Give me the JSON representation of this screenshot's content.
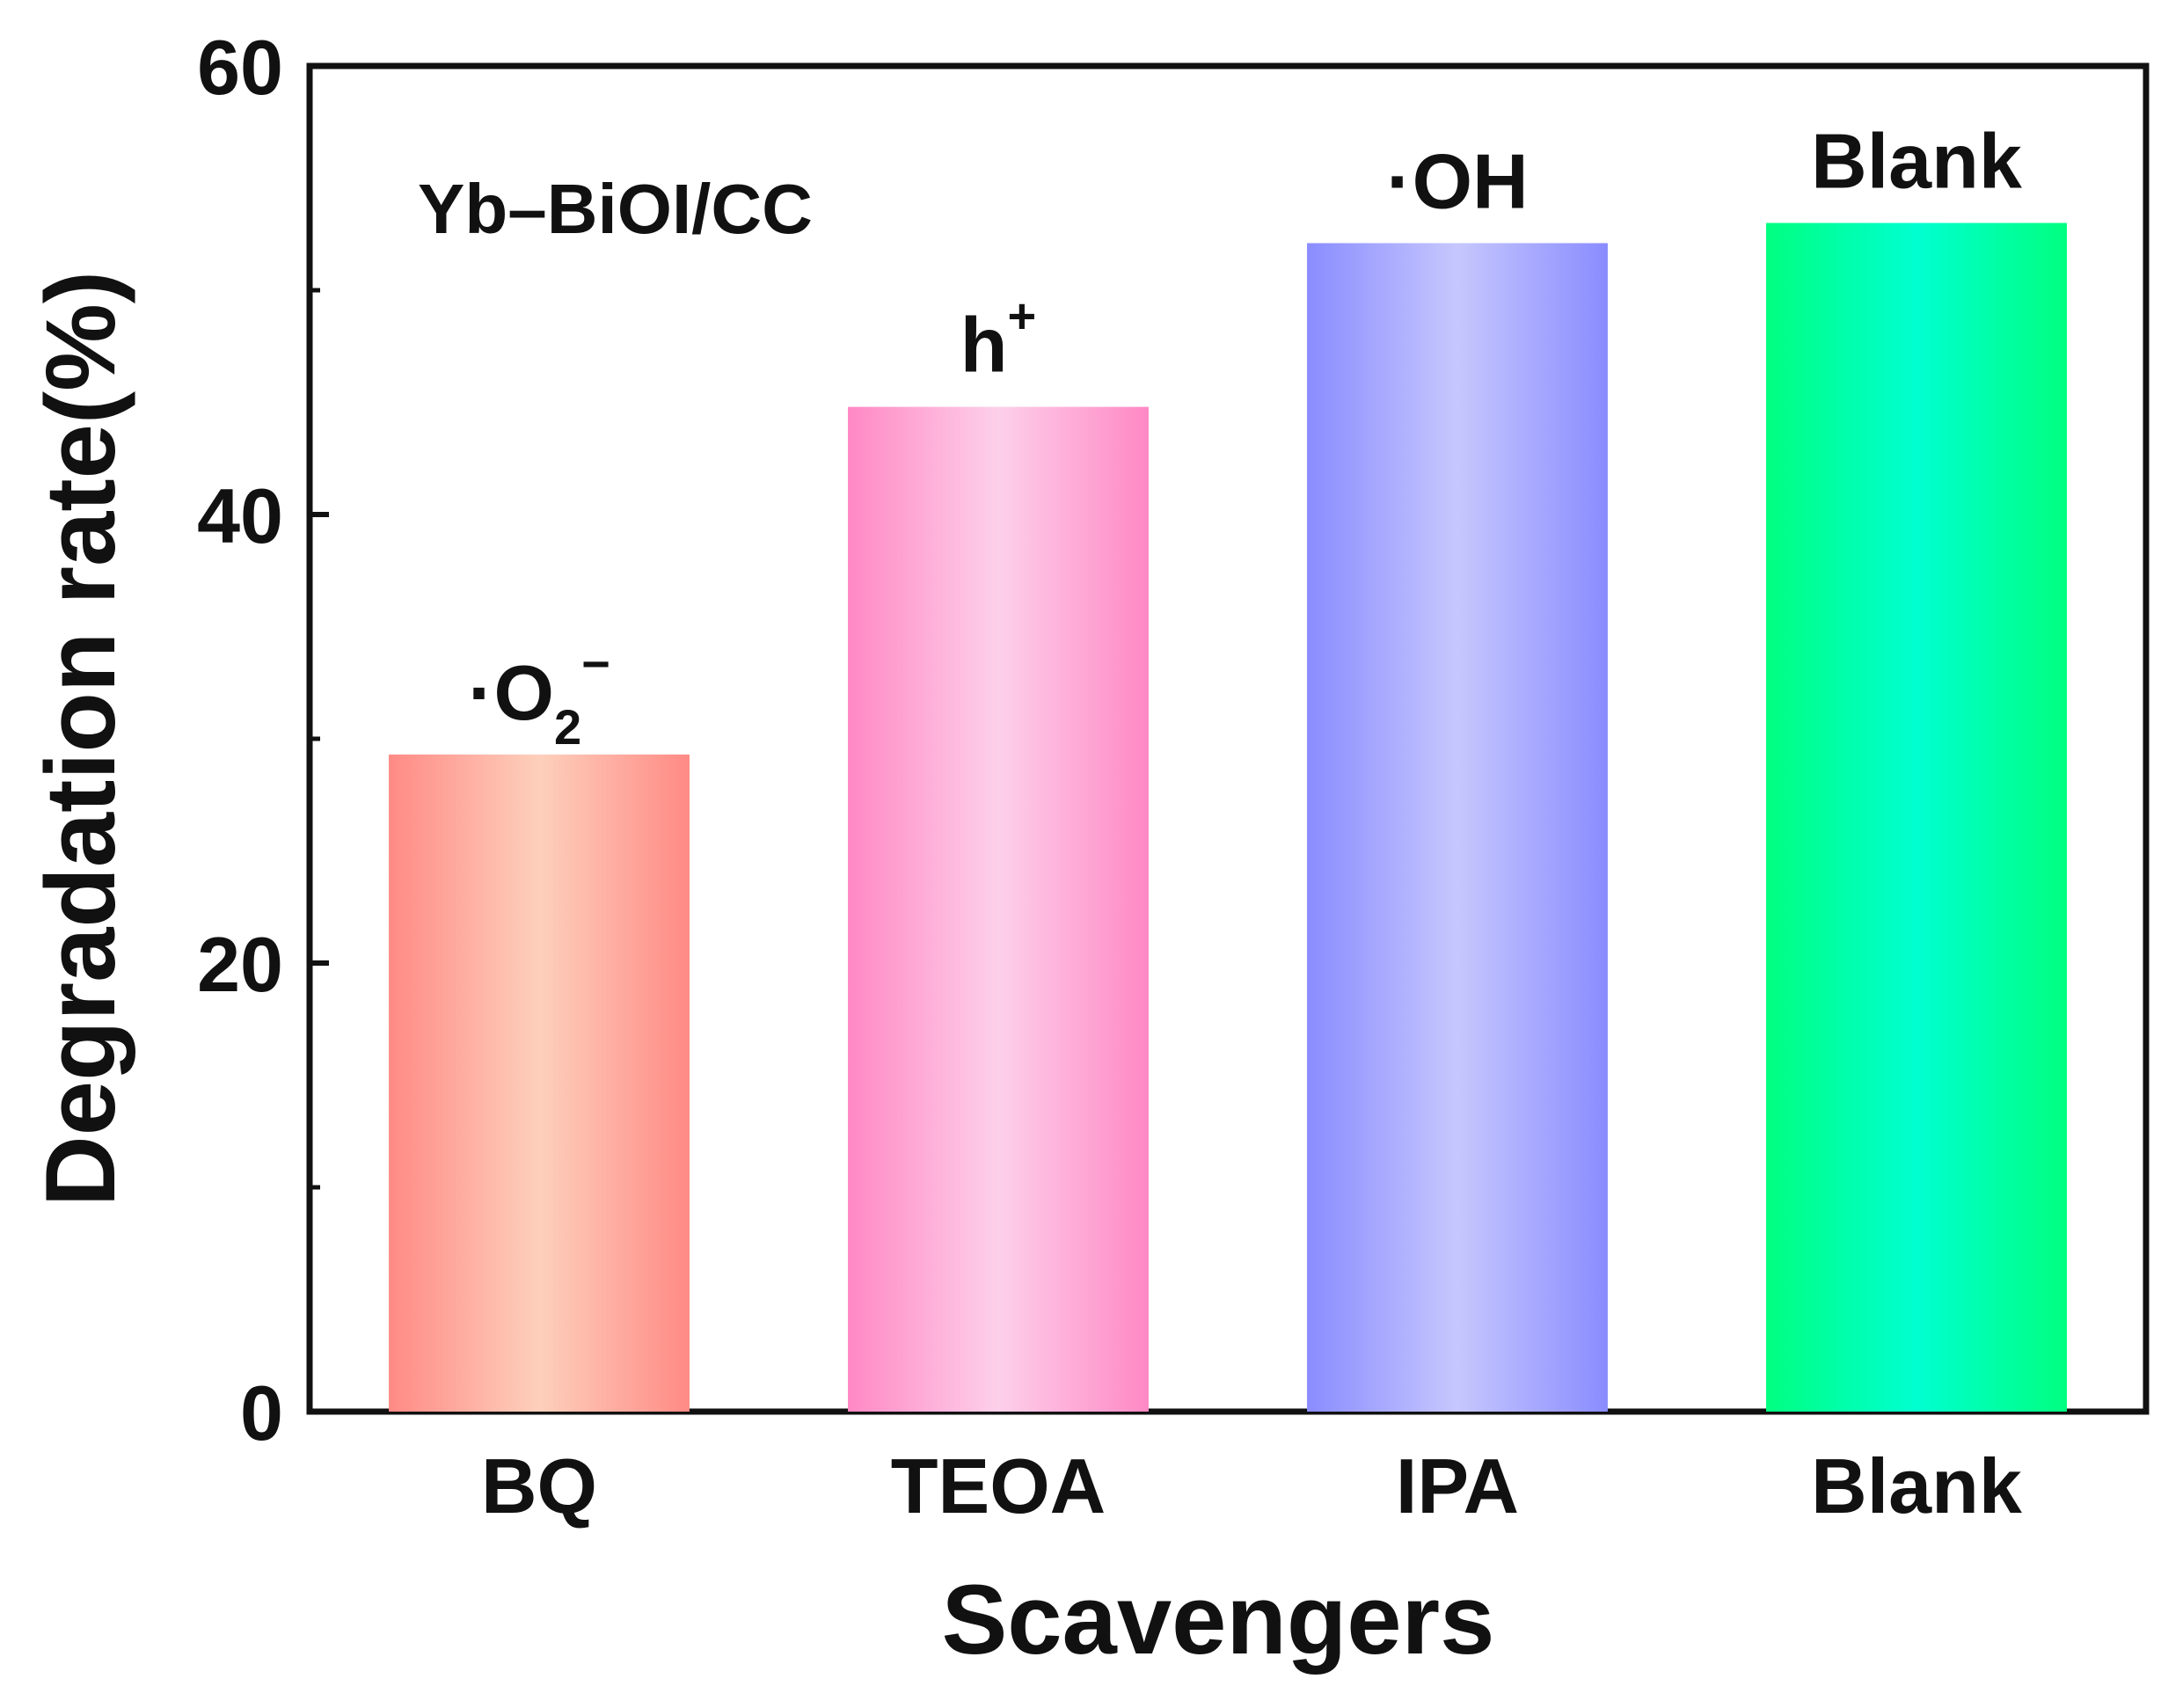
{
  "chart_data": {
    "type": "bar",
    "title": "",
    "xlabel": "Scavengers",
    "ylabel": "Degradation rate(%)",
    "ylim": [
      0,
      60
    ],
    "yticks": [
      0,
      20,
      40,
      60
    ],
    "grid": false,
    "legend": "none",
    "annotation": "Yb–BiOI/CC",
    "categories": [
      "BQ",
      "TEOA",
      "IPA",
      "Blank"
    ],
    "values": [
      29.3,
      44.8,
      52.1,
      53.0
    ],
    "bar_labels": [
      {
        "main": "·O",
        "sub": "2",
        "sup": "−"
      },
      {
        "main": "h",
        "sub": "",
        "sup": "+"
      },
      {
        "main": "·OH",
        "sub": "",
        "sup": ""
      },
      {
        "main": "Blank",
        "sub": "",
        "sup": ""
      }
    ],
    "colors": [
      {
        "edge": "#ff8a85",
        "center": "#fdd0bc"
      },
      {
        "edge": "#ff88c4",
        "center": "#fdd0ea"
      },
      {
        "edge": "#8a8cff",
        "center": "#c6c7fd"
      },
      {
        "edge": "#00ff80",
        "center": "#00ffd0"
      }
    ]
  }
}
